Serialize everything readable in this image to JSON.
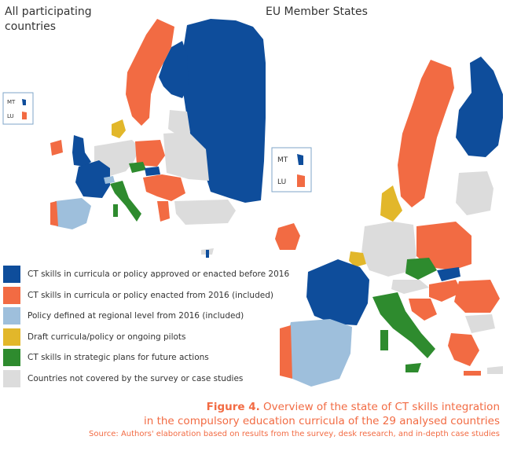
{
  "maps": {
    "left_title": "All participating countries",
    "right_title": "EU Member States",
    "inset_left": {
      "mt_label": "MT",
      "lu_label": "LU"
    },
    "inset_right": {
      "mt_label": "MT",
      "lu_label": "LU"
    }
  },
  "colors": {
    "before_2016": "#0e4d9b",
    "from_2016": "#f26b43",
    "regional": "#9ebfdc",
    "draft": "#e2b72a",
    "strategic": "#2e8b2e",
    "not_covered": "#dcdcdc"
  },
  "legend": [
    {
      "key": "before_2016",
      "label": "CT skills in curricula or policy approved or enacted before 2016"
    },
    {
      "key": "from_2016",
      "label": "CT skills in curricula or policy enacted from 2016 (included)"
    },
    {
      "key": "regional",
      "label": "Policy defined at regional level from 2016 (included)"
    },
    {
      "key": "draft",
      "label": "Draft curricula/policy or ongoing pilots"
    },
    {
      "key": "strategic",
      "label": "CT skills in strategic plans for future actions"
    },
    {
      "key": "not_covered",
      "label": "Countries not covered by the survey or case studies"
    }
  ],
  "caption": {
    "figure_label": "Figure 4.",
    "title_line1": " Overview of the state of CT skills integration",
    "title_line2": "in the compulsory education curricula of the 29 analysed countries",
    "source": "Source: Authors' elaboration based on results from the survey, desk research, and in-depth case studies"
  }
}
